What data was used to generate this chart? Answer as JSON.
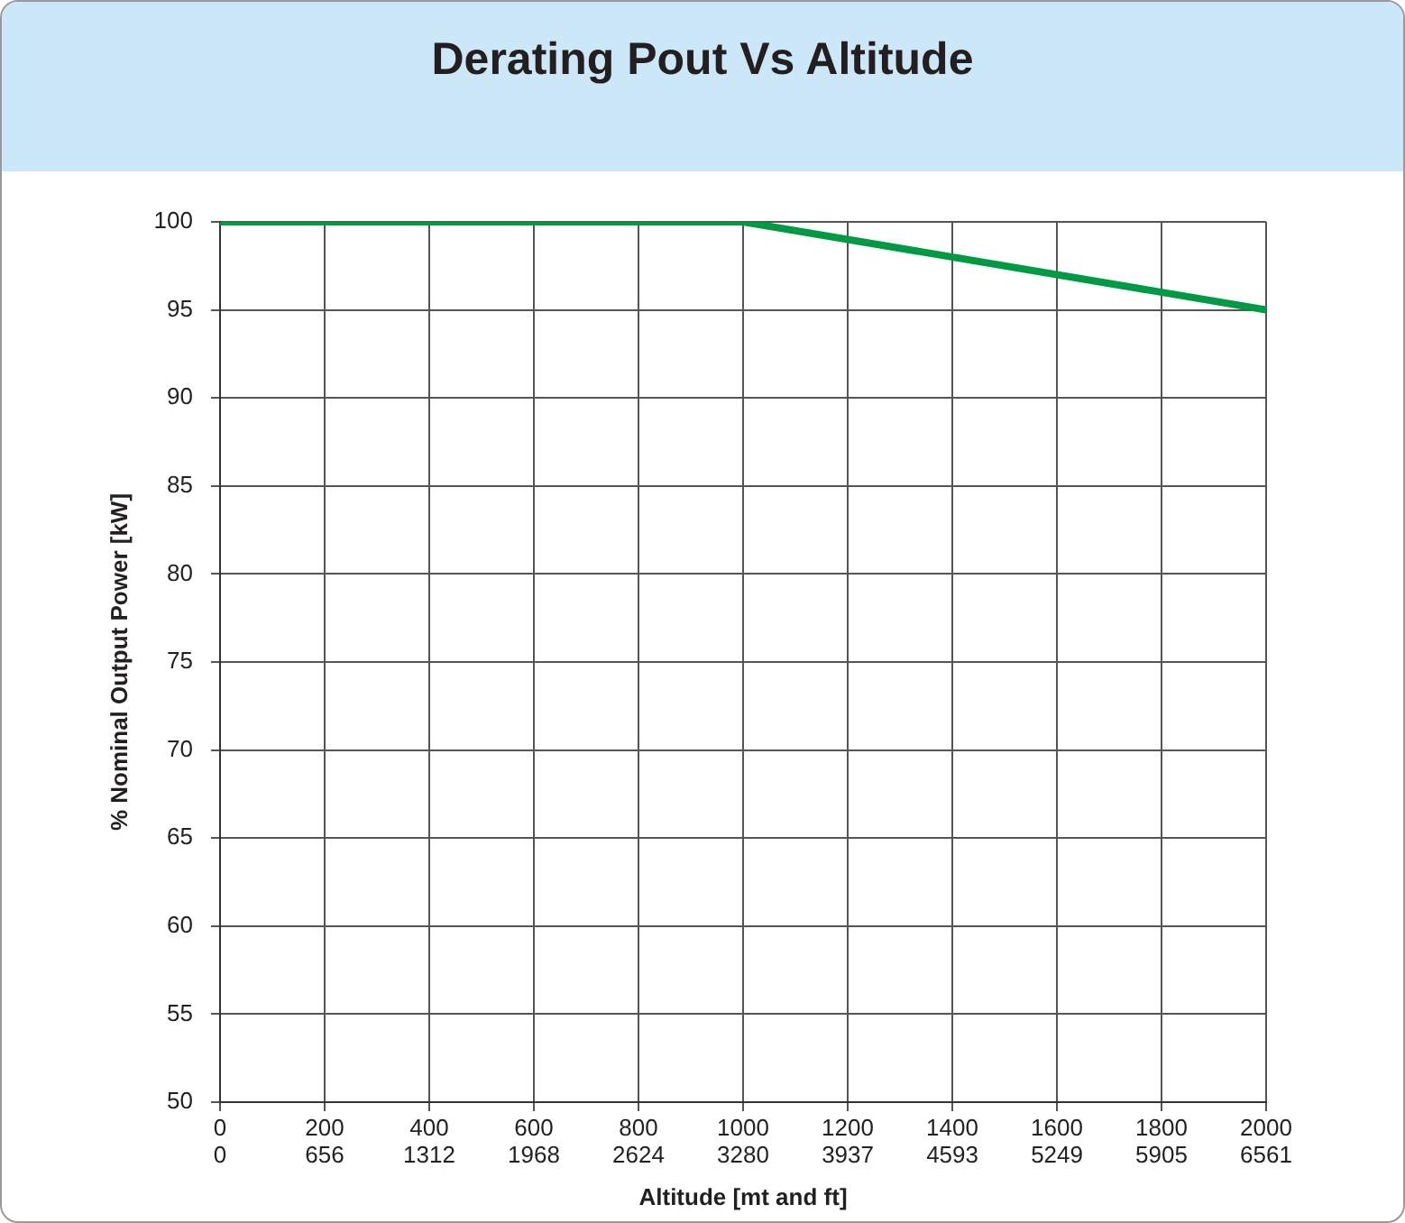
{
  "chart_data": {
    "type": "line",
    "title": "Derating Pout Vs Altitude",
    "xlabel": "Altitude [mt and ft]",
    "ylabel": "% Nominal Output Power [kW]",
    "x": [
      0,
      1000,
      2000
    ],
    "series": [
      {
        "color": "#009a44",
        "values": [
          100,
          100,
          95
        ]
      }
    ],
    "xlim": [
      0,
      2000
    ],
    "xticks": [
      0,
      200,
      400,
      600,
      800,
      1000,
      1200,
      1400,
      1600,
      1800,
      2000
    ],
    "x2lim": [
      0,
      6561
    ],
    "x2ticks": [
      0,
      656,
      1312,
      1968,
      2624,
      3280,
      3937,
      4593,
      5249,
      5905,
      6561
    ],
    "ylim": [
      50,
      100
    ],
    "yticks": [
      50,
      55,
      60,
      65,
      70,
      75,
      80,
      85,
      90,
      95,
      100
    ],
    "grid": true,
    "marker": "none",
    "line_style": "solid",
    "legend": false
  }
}
